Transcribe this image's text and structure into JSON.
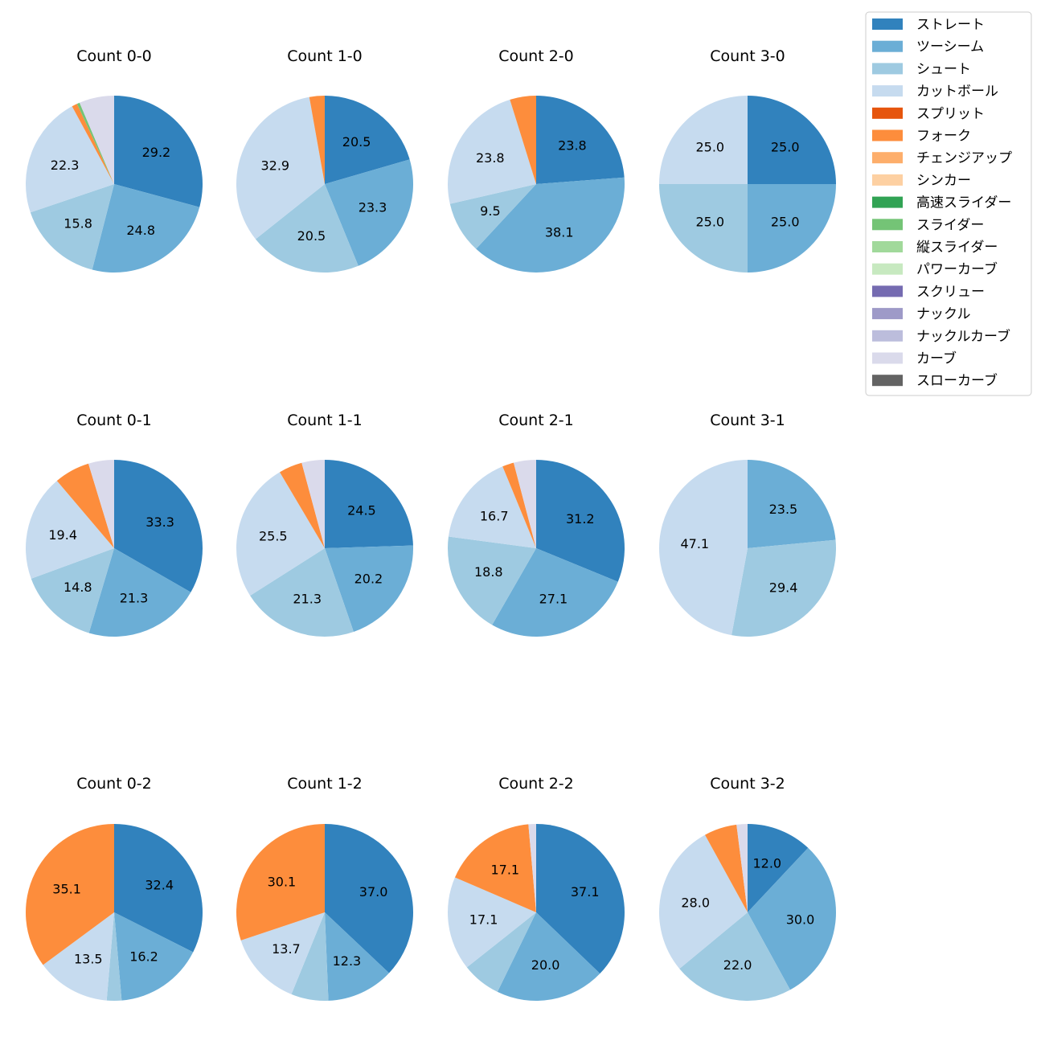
{
  "pitch_types": [
    {
      "name": "ストレート",
      "color": "#3182bd"
    },
    {
      "name": "ツーシーム",
      "color": "#6baed6"
    },
    {
      "name": "シュート",
      "color": "#9ecae1"
    },
    {
      "name": "カットボール",
      "color": "#c6dbef"
    },
    {
      "name": "スプリット",
      "color": "#e6550d"
    },
    {
      "name": "フォーク",
      "color": "#fd8d3c"
    },
    {
      "name": "チェンジアップ",
      "color": "#fdae6b"
    },
    {
      "name": "シンカー",
      "color": "#fdd0a2"
    },
    {
      "name": "高速スライダー",
      "color": "#31a354"
    },
    {
      "name": "スライダー",
      "color": "#74c476"
    },
    {
      "name": "縦スライダー",
      "color": "#a1d99b"
    },
    {
      "name": "パワーカーブ",
      "color": "#c7e9c0"
    },
    {
      "name": "スクリュー",
      "color": "#756bb1"
    },
    {
      "name": "ナックル",
      "color": "#9e9ac8"
    },
    {
      "name": "ナックルカーブ",
      "color": "#bcbddc"
    },
    {
      "name": "カーブ",
      "color": "#dadaeb"
    },
    {
      "name": "スローカーブ",
      "color": "#636363"
    }
  ],
  "chart_data": [
    {
      "type": "pie",
      "title": "Count 0-0",
      "values": {
        "ストレート": 29.2,
        "ツーシーム": 24.8,
        "シュート": 15.8,
        "カットボール": 22.3,
        "フォーク": 1.0,
        "スライダー": 0.5,
        "カーブ": 6.4
      },
      "labels": {
        "ストレート": "29.2",
        "ツーシーム": "24.8",
        "シュート": "15.8",
        "カットボール": "22.3"
      }
    },
    {
      "type": "pie",
      "title": "Count 1-0",
      "values": {
        "ストレート": 20.5,
        "ツーシーム": 23.3,
        "シュート": 20.5,
        "カットボール": 32.9,
        "フォーク": 2.8
      },
      "labels": {
        "ストレート": "20.5",
        "ツーシーム": "23.3",
        "シュート": "20.5",
        "カットボール": "32.9"
      }
    },
    {
      "type": "pie",
      "title": "Count 2-0",
      "values": {
        "ストレート": 23.8,
        "ツーシーム": 38.1,
        "シュート": 9.5,
        "カットボール": 23.8,
        "フォーク": 4.8
      },
      "labels": {
        "ストレート": "23.8",
        "ツーシーム": "38.1",
        "シュート": "9.5",
        "カットボール": "23.8"
      }
    },
    {
      "type": "pie",
      "title": "Count 3-0",
      "values": {
        "ストレート": 25.0,
        "ツーシーム": 25.0,
        "シュート": 25.0,
        "カットボール": 25.0
      },
      "labels": {
        "ストレート": "25.0",
        "ツーシーム": "25.0",
        "シュート": "25.0",
        "カットボール": "25.0"
      }
    },
    {
      "type": "pie",
      "title": "Count 0-1",
      "values": {
        "ストレート": 33.3,
        "ツーシーム": 21.3,
        "シュート": 14.8,
        "カットボール": 19.4,
        "フォーク": 6.5,
        "カーブ": 4.7
      },
      "labels": {
        "ストレート": "33.3",
        "ツーシーム": "21.3",
        "シュート": "14.8",
        "カットボール": "19.4"
      }
    },
    {
      "type": "pie",
      "title": "Count 1-1",
      "values": {
        "ストレート": 24.5,
        "ツーシーム": 20.2,
        "シュート": 21.3,
        "カットボール": 25.5,
        "フォーク": 4.3,
        "カーブ": 4.2
      },
      "labels": {
        "ストレート": "24.5",
        "ツーシーム": "20.2",
        "シュート": "21.3",
        "カットボール": "25.5"
      }
    },
    {
      "type": "pie",
      "title": "Count 2-1",
      "values": {
        "ストレート": 31.2,
        "ツーシーム": 27.1,
        "シュート": 18.8,
        "カットボール": 16.7,
        "フォーク": 2.1,
        "カーブ": 4.1
      },
      "labels": {
        "ストレート": "31.2",
        "ツーシーム": "27.1",
        "シュート": "18.8",
        "カットボール": "16.7"
      }
    },
    {
      "type": "pie",
      "title": "Count 3-1",
      "values": {
        "ツーシーム": 23.5,
        "シュート": 29.4,
        "カットボール": 47.1
      },
      "labels": {
        "ツーシーム": "23.5",
        "シュート": "29.4",
        "カットボール": "47.1"
      }
    },
    {
      "type": "pie",
      "title": "Count 0-2",
      "values": {
        "ストレート": 32.4,
        "ツーシーム": 16.2,
        "シュート": 2.7,
        "カットボール": 13.5,
        "フォーク": 35.1
      },
      "labels": {
        "ストレート": "32.4",
        "ツーシーム": "16.2",
        "カットボール": "13.5",
        "フォーク": "35.1"
      }
    },
    {
      "type": "pie",
      "title": "Count 1-2",
      "values": {
        "ストレート": 37.0,
        "ツーシーム": 12.3,
        "シュート": 6.8,
        "カットボール": 13.7,
        "フォーク": 30.1
      },
      "labels": {
        "ストレート": "37.0",
        "ツーシーム": "12.3",
        "カットボール": "13.7",
        "フォーク": "30.1"
      }
    },
    {
      "type": "pie",
      "title": "Count 2-2",
      "values": {
        "ストレート": 37.1,
        "ツーシーム": 20.0,
        "シュート": 7.1,
        "カットボール": 17.1,
        "フォーク": 17.1,
        "カーブ": 1.4
      },
      "labels": {
        "ストレート": "37.1",
        "ツーシーム": "20.0",
        "カットボール": "17.1",
        "フォーク": "17.1"
      }
    },
    {
      "type": "pie",
      "title": "Count 3-2",
      "values": {
        "ストレート": 12.0,
        "ツーシーム": 30.0,
        "シュート": 22.0,
        "カットボール": 28.0,
        "フォーク": 6.0,
        "カーブ": 2.0
      },
      "labels": {
        "ストレート": "12.0",
        "ツーシーム": "30.0",
        "シュート": "22.0",
        "カットボール": "28.0"
      }
    }
  ]
}
